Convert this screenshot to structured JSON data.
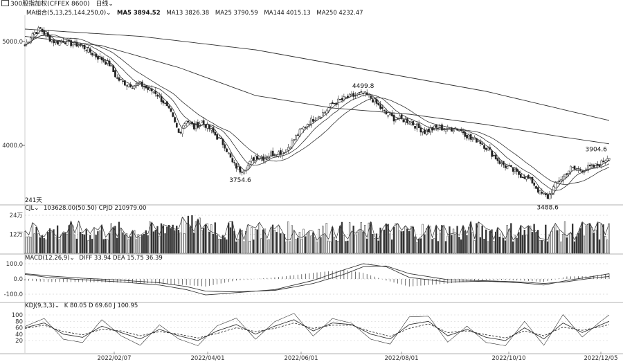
{
  "header": {
    "title": "300股指加权(CFFEX 8600)",
    "period": "日线",
    "icon": "grid-icon"
  },
  "ma_legend": {
    "name": "MA组合(5,13,25,144,250,0)",
    "items": [
      "MA5 3894.52",
      "MA13 3826.38",
      "MA25 3790.59",
      "MA144 4015.13",
      "MA250 4232.47"
    ]
  },
  "vol_legend": {
    "name": "CJL",
    "text": "103628.00(50.50)  CPJD 210979.00"
  },
  "macd_legend": {
    "name": "MACD(12,26,9)",
    "text": "DIFF 33.94  DEA 15.75  36.39"
  },
  "kdj_legend": {
    "name": "KDJ(9,3,3)",
    "text": "K 80.05  D 69.60  J 100.95"
  },
  "days_label": "241天",
  "chart_data": {
    "type": "candlestick",
    "price_axis": {
      "ticks": [
        "5000.0",
        "4000.0"
      ],
      "tick_values": [
        5000,
        4000
      ]
    },
    "volume_axis": {
      "ticks": [
        "24万",
        "12万"
      ],
      "tick_values": [
        240000,
        120000
      ]
    },
    "macd_axis": {
      "ticks": [
        "100.0",
        "0.0",
        "-100.0"
      ],
      "tick_values": [
        100,
        0,
        -100
      ]
    },
    "kdj_axis": {
      "ticks": [
        "100",
        "80",
        "60",
        "40",
        "20"
      ],
      "tick_values": [
        100,
        80,
        60,
        40,
        20
      ]
    },
    "x_ticks": [
      "2022/02/07",
      "2022/04/01",
      "2022/06/01",
      "2022/08/01",
      "2022/10/10",
      "2022/12/05"
    ],
    "annotations": [
      {
        "label": "4499.8",
        "value": 4499.8
      },
      {
        "label": "3754.6",
        "value": 3754.6
      },
      {
        "label": "3488.6",
        "value": 3488.6
      },
      {
        "label": "3904.6",
        "value": 3904.6
      }
    ],
    "price_path": [
      [
        0,
        4960
      ],
      [
        4,
        5080
      ],
      [
        8,
        5120
      ],
      [
        12,
        5040
      ],
      [
        16,
        4990
      ],
      [
        20,
        5010
      ],
      [
        24,
        4980
      ],
      [
        28,
        4970
      ],
      [
        32,
        4930
      ],
      [
        36,
        4870
      ],
      [
        40,
        4830
      ],
      [
        44,
        4780
      ],
      [
        48,
        4640
      ],
      [
        52,
        4600
      ],
      [
        56,
        4580
      ],
      [
        60,
        4590
      ],
      [
        64,
        4540
      ],
      [
        68,
        4510
      ],
      [
        72,
        4420
      ],
      [
        76,
        4300
      ],
      [
        80,
        4120
      ],
      [
        84,
        4250
      ],
      [
        88,
        4170
      ],
      [
        92,
        4230
      ],
      [
        96,
        4160
      ],
      [
        100,
        4080
      ],
      [
        104,
        4000
      ],
      [
        108,
        3830
      ],
      [
        112,
        3760
      ],
      [
        116,
        3800
      ],
      [
        120,
        3900
      ],
      [
        124,
        3880
      ],
      [
        128,
        3920
      ],
      [
        132,
        3930
      ],
      [
        136,
        3960
      ],
      [
        140,
        4060
      ],
      [
        144,
        4150
      ],
      [
        148,
        4230
      ],
      [
        152,
        4280
      ],
      [
        156,
        4320
      ],
      [
        160,
        4400
      ],
      [
        164,
        4430
      ],
      [
        168,
        4460
      ],
      [
        172,
        4480
      ],
      [
        176,
        4495
      ],
      [
        180,
        4460
      ],
      [
        184,
        4380
      ],
      [
        188,
        4300
      ],
      [
        192,
        4260
      ],
      [
        196,
        4250
      ],
      [
        200,
        4230
      ],
      [
        204,
        4180
      ],
      [
        208,
        4130
      ],
      [
        212,
        4160
      ],
      [
        216,
        4170
      ],
      [
        220,
        4150
      ],
      [
        224,
        4170
      ],
      [
        228,
        4130
      ],
      [
        232,
        4060
      ],
      [
        236,
        4050
      ],
      [
        240,
        3980
      ],
      [
        244,
        3900
      ],
      [
        248,
        3820
      ],
      [
        252,
        3780
      ],
      [
        256,
        3730
      ],
      [
        260,
        3700
      ],
      [
        264,
        3650
      ],
      [
        268,
        3540
      ],
      [
        272,
        3500
      ],
      [
        276,
        3620
      ],
      [
        280,
        3700
      ],
      [
        284,
        3780
      ],
      [
        288,
        3760
      ],
      [
        292,
        3780
      ],
      [
        296,
        3790
      ],
      [
        300,
        3830
      ],
      [
        304,
        3905
      ]
    ],
    "ma_series": [
      {
        "name": "MA250",
        "values": [
          [
            0,
            5120
          ],
          [
            60,
            5050
          ],
          [
            120,
            4920
          ],
          [
            180,
            4720
          ],
          [
            240,
            4520
          ],
          [
            304,
            4240
          ]
        ]
      },
      {
        "name": "MA144",
        "values": [
          [
            0,
            5050
          ],
          [
            40,
            4960
          ],
          [
            80,
            4750
          ],
          [
            120,
            4480
          ],
          [
            160,
            4360
          ],
          [
            200,
            4300
          ],
          [
            240,
            4200
          ],
          [
            280,
            4080
          ],
          [
            304,
            4015
          ]
        ]
      }
    ],
    "macd_series": [
      {
        "name": "DIFF",
        "values": [
          [
            0,
            30
          ],
          [
            12,
            10
          ],
          [
            30,
            -5
          ],
          [
            50,
            -20
          ],
          [
            70,
            -40
          ],
          [
            84,
            -70
          ],
          [
            94,
            -105
          ],
          [
            110,
            -90
          ],
          [
            130,
            -70
          ],
          [
            150,
            -10
          ],
          [
            166,
            60
          ],
          [
            176,
            100
          ],
          [
            188,
            80
          ],
          [
            200,
            10
          ],
          [
            220,
            -20
          ],
          [
            240,
            -15
          ],
          [
            258,
            -25
          ],
          [
            270,
            -40
          ],
          [
            282,
            -10
          ],
          [
            295,
            15
          ],
          [
            304,
            34
          ]
        ]
      },
      {
        "name": "DEA",
        "values": [
          [
            0,
            35
          ],
          [
            12,
            20
          ],
          [
            30,
            5
          ],
          [
            50,
            -8
          ],
          [
            70,
            -25
          ],
          [
            84,
            -50
          ],
          [
            94,
            -80
          ],
          [
            110,
            -85
          ],
          [
            130,
            -75
          ],
          [
            150,
            -30
          ],
          [
            166,
            30
          ],
          [
            176,
            80
          ],
          [
            188,
            85
          ],
          [
            200,
            35
          ],
          [
            220,
            -5
          ],
          [
            240,
            -12
          ],
          [
            258,
            -20
          ],
          [
            270,
            -30
          ],
          [
            282,
            -18
          ],
          [
            295,
            5
          ],
          [
            304,
            16
          ]
        ]
      }
    ],
    "kdj_series": [
      {
        "name": "K",
        "values": [
          [
            0,
            60
          ],
          [
            10,
            75
          ],
          [
            20,
            40
          ],
          [
            30,
            30
          ],
          [
            40,
            65
          ],
          [
            50,
            45
          ],
          [
            60,
            25
          ],
          [
            70,
            55
          ],
          [
            80,
            35
          ],
          [
            90,
            20
          ],
          [
            100,
            50
          ],
          [
            110,
            70
          ],
          [
            120,
            40
          ],
          [
            130,
            65
          ],
          [
            140,
            85
          ],
          [
            150,
            50
          ],
          [
            160,
            75
          ],
          [
            170,
            70
          ],
          [
            180,
            40
          ],
          [
            190,
            25
          ],
          [
            200,
            70
          ],
          [
            210,
            80
          ],
          [
            220,
            35
          ],
          [
            230,
            55
          ],
          [
            240,
            30
          ],
          [
            250,
            20
          ],
          [
            260,
            60
          ],
          [
            270,
            25
          ],
          [
            280,
            75
          ],
          [
            290,
            45
          ],
          [
            300,
            70
          ],
          [
            304,
            80
          ]
        ]
      },
      {
        "name": "D",
        "values": [
          [
            0,
            58
          ],
          [
            10,
            68
          ],
          [
            20,
            48
          ],
          [
            30,
            38
          ],
          [
            40,
            55
          ],
          [
            50,
            50
          ],
          [
            60,
            35
          ],
          [
            70,
            48
          ],
          [
            80,
            40
          ],
          [
            90,
            28
          ],
          [
            100,
            42
          ],
          [
            110,
            60
          ],
          [
            120,
            48
          ],
          [
            130,
            58
          ],
          [
            140,
            75
          ],
          [
            150,
            58
          ],
          [
            160,
            68
          ],
          [
            170,
            68
          ],
          [
            180,
            48
          ],
          [
            190,
            33
          ],
          [
            200,
            58
          ],
          [
            210,
            72
          ],
          [
            220,
            45
          ],
          [
            230,
            50
          ],
          [
            240,
            38
          ],
          [
            250,
            28
          ],
          [
            260,
            50
          ],
          [
            270,
            35
          ],
          [
            280,
            62
          ],
          [
            290,
            52
          ],
          [
            300,
            64
          ],
          [
            304,
            70
          ]
        ]
      }
    ],
    "volume_bars": 305
  }
}
